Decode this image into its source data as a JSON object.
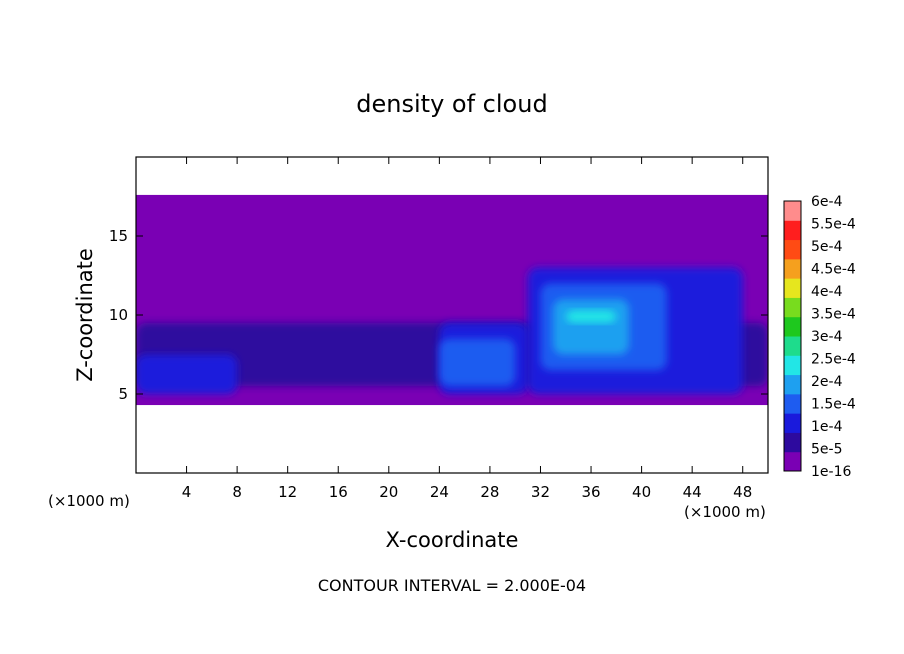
{
  "chart_data": {
    "type": "heatmap",
    "title": "density of cloud",
    "xlabel": "X-coordinate",
    "ylabel": "Z-coordinate",
    "x_unit_label": "(×1000 m)",
    "x_unit_label_right": "(×1000 m)",
    "xlim": [
      0,
      50
    ],
    "ylim": [
      0,
      20
    ],
    "x_ticks": [
      4,
      8,
      12,
      16,
      20,
      24,
      28,
      32,
      36,
      40,
      44,
      48
    ],
    "y_ticks": [
      5,
      10,
      15
    ],
    "grid": false,
    "colorbar": {
      "placement": "right",
      "levels": [
        "1e-16",
        "5e-5",
        "1e-4",
        "1.5e-4",
        "2e-4",
        "2.5e-4",
        "3e-4",
        "3.5e-4",
        "4e-4",
        "4.5e-4",
        "5e-4",
        "5.5e-4",
        "6e-4"
      ],
      "colors": [
        "#7a00b4",
        "#2d0a9e",
        "#1a1adc",
        "#1e5cf0",
        "#1ea0f0",
        "#22e6e6",
        "#1edc8c",
        "#1ec81e",
        "#78dc1e",
        "#e6e61e",
        "#f5a01e",
        "#ff4b14",
        "#ff1e1e",
        "#ff8c8c"
      ]
    },
    "contour_interval_text": "CONTOUR INTERVAL = 2.000E-04",
    "field": {
      "cloud_base_z": 4.3,
      "cloud_top_z": 17.6,
      "regions": [
        {
          "x": [
            0,
            50
          ],
          "z": [
            4.3,
            17.6
          ],
          "level": 0
        },
        {
          "x": [
            0,
            50
          ],
          "z": [
            5.5,
            9.5
          ],
          "level": 1
        },
        {
          "x": [
            0,
            8
          ],
          "z": [
            5.0,
            7.5
          ],
          "level": 2
        },
        {
          "x": [
            24,
            31
          ],
          "z": [
            5.0,
            9.5
          ],
          "level": 2
        },
        {
          "x": [
            31,
            48
          ],
          "z": [
            5.0,
            13.0
          ],
          "level": 2
        },
        {
          "x": [
            24,
            30
          ],
          "z": [
            5.5,
            8.5
          ],
          "level": 3
        },
        {
          "x": [
            32,
            42
          ],
          "z": [
            6.5,
            12.0
          ],
          "level": 3
        },
        {
          "x": [
            33,
            39
          ],
          "z": [
            7.5,
            11.0
          ],
          "level": 4
        },
        {
          "x": [
            34,
            38
          ],
          "z": [
            9.5,
            10.3
          ],
          "level": 5
        }
      ]
    }
  },
  "colors": {
    "frame": "#000000",
    "background": "#ffffff"
  }
}
